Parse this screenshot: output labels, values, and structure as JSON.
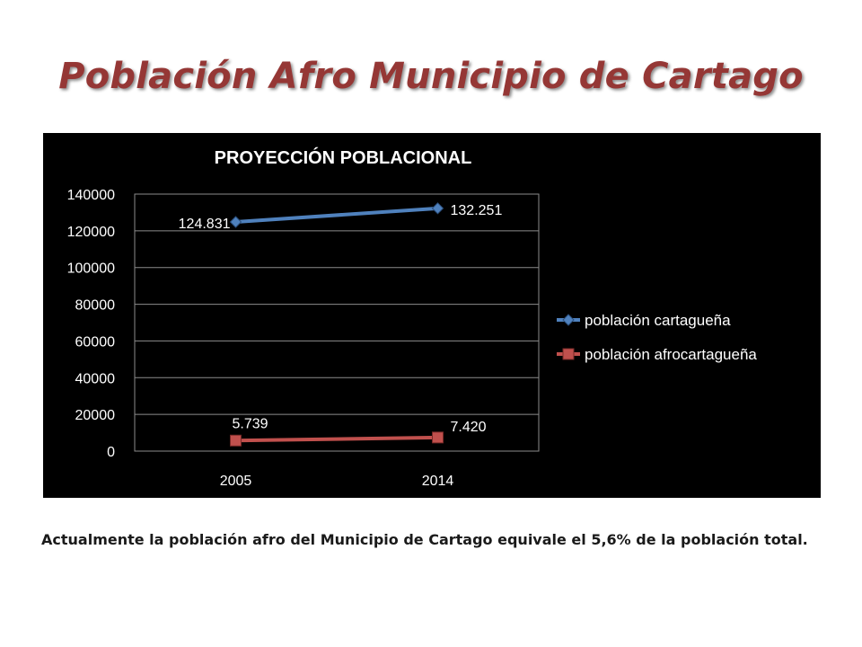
{
  "slide": {
    "title": "Población Afro Municipio de Cartago",
    "caption": "Actualmente la población afro del Municipio de Cartago equivale el 5,6% de la población total."
  },
  "chart_data": {
    "type": "line",
    "title": "PROYECCIÓN POBLACIONAL",
    "categories": [
      "2005",
      "2014"
    ],
    "ylim": [
      0,
      140000
    ],
    "yticks": [
      0,
      20000,
      40000,
      60000,
      80000,
      100000,
      120000,
      140000
    ],
    "grid": true,
    "legend_position": "right",
    "series": [
      {
        "name": "población cartagueña",
        "values": [
          124831,
          132251
        ],
        "labels": [
          "124.831",
          "132.251"
        ],
        "color": "#4f81bd",
        "marker": "diamond"
      },
      {
        "name": "población afrocartagueña",
        "values": [
          5739,
          7420
        ],
        "labels": [
          "5.739",
          "7.420"
        ],
        "color": "#c0504d",
        "marker": "square"
      }
    ],
    "colors": {
      "background": "#000000",
      "text": "#ffffff",
      "grid": "#8c8c8c"
    }
  }
}
